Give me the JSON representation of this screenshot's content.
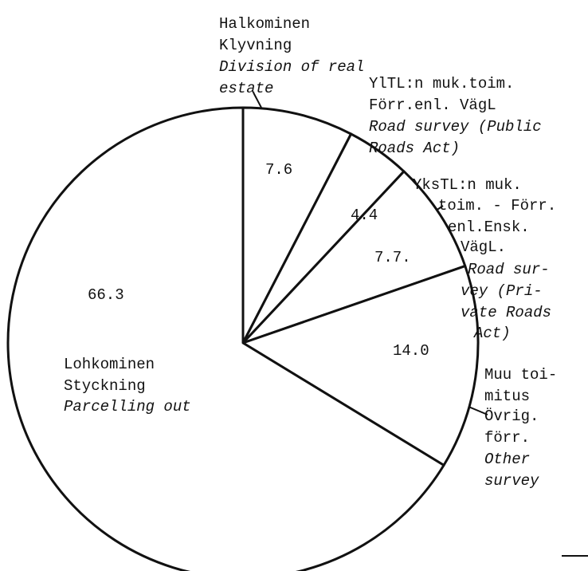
{
  "chart_data": {
    "type": "pie",
    "categories": [
      {
        "name": [
          "Halkominen",
          "Klyvning"
        ],
        "translation": [
          "Division of real",
          "estate"
        ]
      },
      {
        "name": [
          "YlTL:n muk.toim.",
          "Förr.enl. VägL"
        ],
        "translation": [
          "Road survey (Public",
          "Roads Act)"
        ]
      },
      {
        "name": [
          "YksTL:n muk.",
          "toim. - Förr.",
          "enl.Ensk.",
          "VägL."
        ],
        "translation": [
          "Road sur-",
          "vey (Pri-",
          "vate Roads",
          "Act)"
        ]
      },
      {
        "name": [
          "Muu toi-",
          "mitus",
          "Övrig.",
          "förr."
        ],
        "translation": [
          "Other",
          "survey"
        ]
      },
      {
        "name": [
          "Lohkominen",
          "Styckning"
        ],
        "translation": [
          "Parcelling out"
        ]
      }
    ],
    "values": [
      7.6,
      4.4,
      7.7,
      14.0,
      66.3
    ],
    "value_labels": [
      "7.6",
      "4.4",
      "7.7.",
      "14.0",
      "66.3"
    ],
    "color": "#ffffff"
  }
}
